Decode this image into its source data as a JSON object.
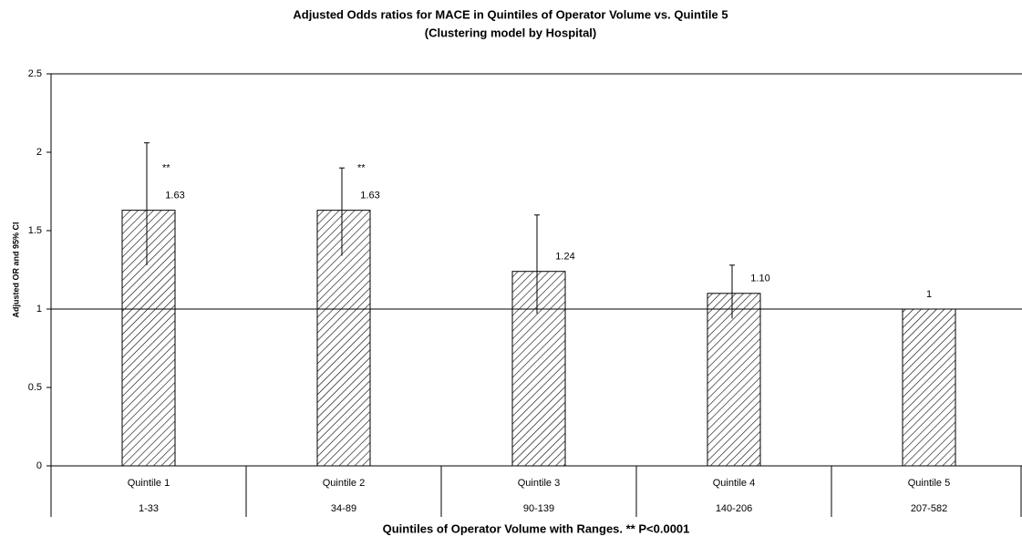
{
  "chart_data": {
    "type": "bar",
    "title": "Adjusted Odds ratios for MACE in Quintiles of Operator Volume vs. Quintile 5",
    "subtitle": "(Clustering model by Hospital)",
    "y_label": "Adjusted OR and 95% CI",
    "x_label": "Quintiles of Operator Volume with Ranges. ** P<0.0001",
    "categories": [
      "Quintile 1",
      "Quintile 2",
      "Quintile 3",
      "Quintile 4",
      "Quintile 5"
    ],
    "ranges": [
      "1-33",
      "34-89",
      "90-139",
      "140-206",
      "207-582"
    ],
    "values": [
      1.63,
      1.63,
      1.24,
      1.1,
      1
    ],
    "value_labels": [
      "1.63",
      "1.63",
      "1.24",
      "1.10",
      "1"
    ],
    "ci_lower": [
      1.28,
      1.34,
      0.97,
      0.94,
      null
    ],
    "ci_upper": [
      2.06,
      1.9,
      1.6,
      1.28,
      null
    ],
    "significance": [
      "**",
      "**",
      null,
      null,
      null
    ],
    "reference_line": 1,
    "color": "#000000",
    "ylim": [
      0,
      2.5
    ],
    "yticks": [
      0,
      0.5,
      1,
      1.5,
      2,
      2.5
    ]
  }
}
